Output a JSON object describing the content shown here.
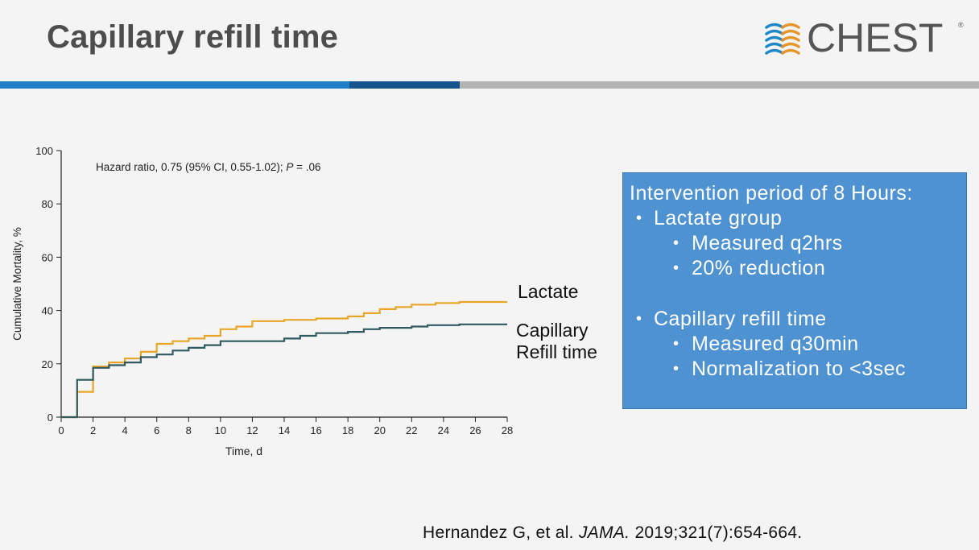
{
  "slide": {
    "title": "Capillary refill time"
  },
  "logo": {
    "text": "CHEST",
    "registered": "®",
    "colors": {
      "blue": "#1f86c8",
      "orange": "#e8942c"
    }
  },
  "chart_data": {
    "type": "line",
    "subtype": "kaplan-meier-step",
    "annotation": "Hazard ratio, 0.75 (95% CI, 0.55-1.02); P = .06",
    "xlabel": "Time, d",
    "ylabel": "Cumulative Mortality, %",
    "xlim": [
      0,
      28
    ],
    "ylim": [
      0,
      100
    ],
    "xticks": [
      0,
      2,
      4,
      6,
      8,
      10,
      12,
      14,
      16,
      18,
      20,
      22,
      24,
      26,
      28
    ],
    "yticks": [
      0,
      20,
      40,
      60,
      80,
      100
    ],
    "grid": false,
    "series": [
      {
        "name": "Lactate",
        "color": "#e8a628",
        "points": [
          [
            0,
            0
          ],
          [
            1,
            0
          ],
          [
            1,
            9.5
          ],
          [
            2,
            9.5
          ],
          [
            2,
            19
          ],
          [
            3,
            19
          ],
          [
            3,
            20.5
          ],
          [
            4,
            20.5
          ],
          [
            4,
            22
          ],
          [
            5,
            22
          ],
          [
            5,
            24.5
          ],
          [
            6,
            24.5
          ],
          [
            6,
            27.5
          ],
          [
            7,
            27.5
          ],
          [
            7,
            28.5
          ],
          [
            8,
            28.5
          ],
          [
            8,
            29.5
          ],
          [
            9,
            29.5
          ],
          [
            9,
            30.5
          ],
          [
            10,
            30.5
          ],
          [
            10,
            33
          ],
          [
            11,
            33
          ],
          [
            11,
            34
          ],
          [
            12,
            34
          ],
          [
            12,
            36
          ],
          [
            14,
            36
          ],
          [
            14,
            36.5
          ],
          [
            16,
            36.5
          ],
          [
            16,
            37
          ],
          [
            18,
            37
          ],
          [
            18,
            37.8
          ],
          [
            19,
            37.8
          ],
          [
            19,
            39
          ],
          [
            20,
            39
          ],
          [
            20,
            40.5
          ],
          [
            21,
            40.5
          ],
          [
            21,
            41.3
          ],
          [
            22,
            41.3
          ],
          [
            22,
            42.2
          ],
          [
            23.5,
            42.2
          ],
          [
            23.5,
            42.8
          ],
          [
            25,
            42.8
          ],
          [
            25,
            43.2
          ],
          [
            28,
            43.2
          ]
        ]
      },
      {
        "name": "Capillary Refill time",
        "color": "#2f5a60",
        "points": [
          [
            0,
            0
          ],
          [
            1,
            0
          ],
          [
            1,
            14
          ],
          [
            2,
            14
          ],
          [
            2,
            18.5
          ],
          [
            3,
            18.5
          ],
          [
            3,
            19.5
          ],
          [
            4,
            19.5
          ],
          [
            4,
            20.5
          ],
          [
            5,
            20.5
          ],
          [
            5,
            22.5
          ],
          [
            6,
            22.5
          ],
          [
            6,
            23.5
          ],
          [
            7,
            23.5
          ],
          [
            7,
            25
          ],
          [
            8,
            25
          ],
          [
            8,
            26
          ],
          [
            9,
            26
          ],
          [
            9,
            27
          ],
          [
            10,
            27
          ],
          [
            10,
            28.5
          ],
          [
            14,
            28.5
          ],
          [
            14,
            29.5
          ],
          [
            15,
            29.5
          ],
          [
            15,
            30.5
          ],
          [
            16,
            30.5
          ],
          [
            16,
            31.5
          ],
          [
            18,
            31.5
          ],
          [
            18,
            32
          ],
          [
            19,
            32
          ],
          [
            19,
            33
          ],
          [
            20,
            33
          ],
          [
            20,
            33.5
          ],
          [
            22,
            33.5
          ],
          [
            22,
            34
          ],
          [
            23,
            34
          ],
          [
            23,
            34.5
          ],
          [
            25,
            34.5
          ],
          [
            25,
            34.8
          ],
          [
            28,
            34.8
          ]
        ]
      }
    ]
  },
  "labels": {
    "lactate": "Lactate",
    "crt_line1": "Capillary",
    "crt_line2": "Refill time"
  },
  "callout": {
    "heading": "Intervention period of 8 Hours:",
    "bullet": "•",
    "group1": "Lactate group",
    "group1_items": [
      "Measured q2hrs",
      "20% reduction"
    ],
    "group2": "Capillary refill time",
    "group2_items": [
      "Measured q30min",
      "Normalization to <3sec"
    ]
  },
  "citation": {
    "authors": "Hernandez G, et al.",
    "journal": "JAMA.",
    "details": "2019;321(7):654-664."
  }
}
